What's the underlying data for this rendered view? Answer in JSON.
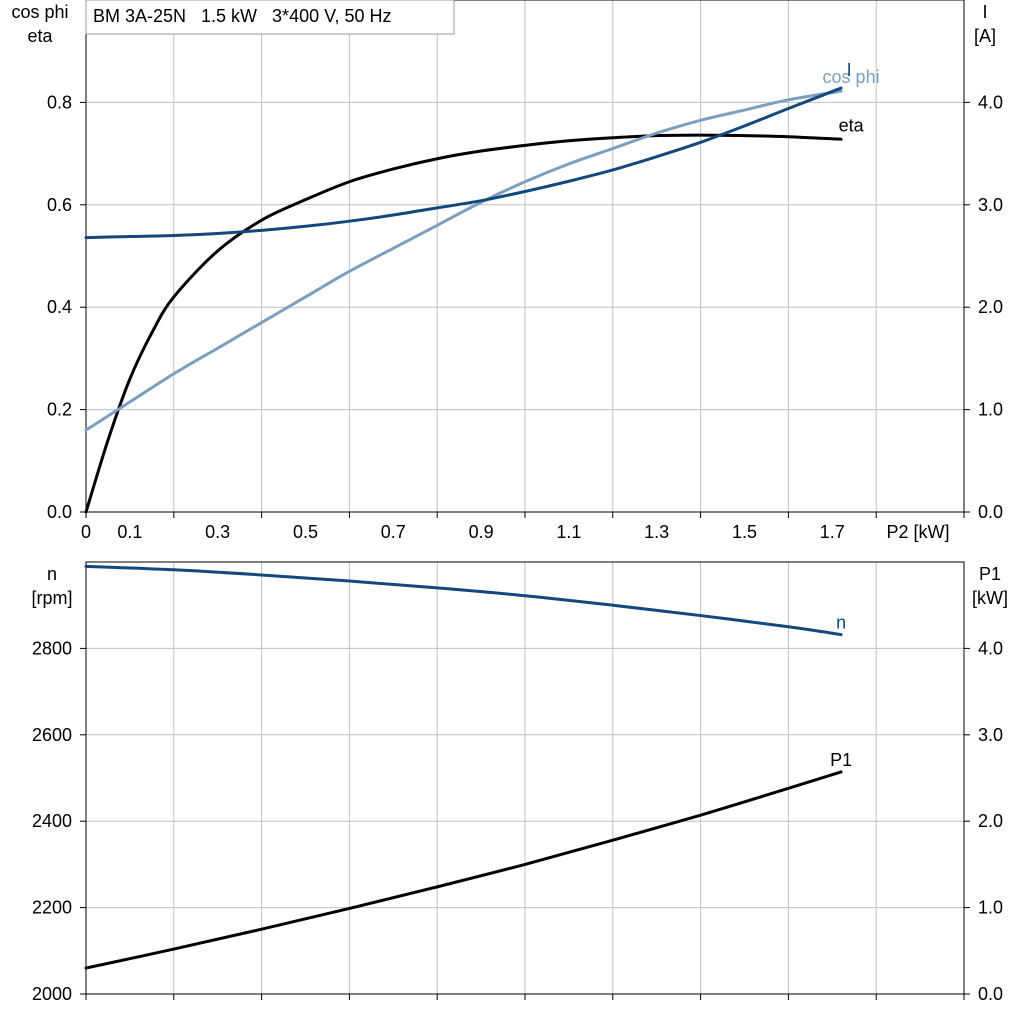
{
  "chart_data": [
    {
      "type": "line",
      "title": "BM 3A-25N   1.5 kW   3*400 V, 50 Hz",
      "xlabel": "P2 [kW]",
      "xlim": [
        0,
        2.0
      ],
      "x_ticks": [
        "0",
        "0.1",
        "0.3",
        "0.5",
        "0.7",
        "0.9",
        "1.1",
        "1.3",
        "1.5",
        "1.7"
      ],
      "x_tick_values": [
        0,
        0.1,
        0.3,
        0.5,
        0.7,
        0.9,
        1.1,
        1.3,
        1.5,
        1.7
      ],
      "grid_x_values": [
        0,
        0.2,
        0.4,
        0.6,
        0.8,
        1.0,
        1.2,
        1.4,
        1.6,
        1.8,
        2.0
      ],
      "ylabel_left": [
        "cos phi",
        "eta"
      ],
      "ylim_left": [
        0,
        1.0
      ],
      "y_ticks_left": [
        "0.0",
        "0.2",
        "0.4",
        "0.6",
        "0.8"
      ],
      "y_tick_values_left": [
        0,
        0.2,
        0.4,
        0.6,
        0.8
      ],
      "ylabel_right": [
        "I",
        "[A]"
      ],
      "ylim_right": [
        0,
        5.0
      ],
      "y_ticks_right": [
        "0.0",
        "1.0",
        "2.0",
        "3.0",
        "4.0"
      ],
      "y_tick_values_right": [
        0,
        1.0,
        2.0,
        3.0,
        4.0
      ],
      "grid": true,
      "series": [
        {
          "name": "eta",
          "axis": "left",
          "color": "#000000",
          "x": [
            0,
            0.05,
            0.1,
            0.15,
            0.2,
            0.3,
            0.4,
            0.5,
            0.6,
            0.7,
            0.8,
            0.9,
            1.0,
            1.1,
            1.2,
            1.3,
            1.4,
            1.5,
            1.6,
            1.72
          ],
          "y": [
            0.0,
            0.14,
            0.26,
            0.35,
            0.42,
            0.51,
            0.57,
            0.61,
            0.645,
            0.67,
            0.69,
            0.705,
            0.716,
            0.725,
            0.731,
            0.735,
            0.736,
            0.735,
            0.733,
            0.728
          ]
        },
        {
          "name": "cos phi",
          "axis": "left",
          "color": "#7c9fc0",
          "x": [
            0,
            0.1,
            0.2,
            0.3,
            0.4,
            0.5,
            0.6,
            0.7,
            0.8,
            0.9,
            1.0,
            1.1,
            1.2,
            1.3,
            1.4,
            1.5,
            1.6,
            1.72
          ],
          "y": [
            0.16,
            0.215,
            0.27,
            0.32,
            0.37,
            0.42,
            0.47,
            0.515,
            0.56,
            0.605,
            0.645,
            0.68,
            0.71,
            0.74,
            0.765,
            0.785,
            0.805,
            0.822
          ]
        },
        {
          "name": "I",
          "axis": "right",
          "color": "#13487e",
          "x": [
            0,
            0.1,
            0.2,
            0.3,
            0.4,
            0.5,
            0.6,
            0.7,
            0.8,
            0.9,
            1.0,
            1.1,
            1.2,
            1.3,
            1.4,
            1.5,
            1.6,
            1.72
          ],
          "y": [
            2.68,
            2.69,
            2.7,
            2.72,
            2.75,
            2.79,
            2.84,
            2.9,
            2.97,
            3.04,
            3.13,
            3.23,
            3.34,
            3.47,
            3.61,
            3.77,
            3.94,
            4.14
          ]
        }
      ],
      "annotations": [
        {
          "text": "cos phi",
          "series": "cos phi"
        },
        {
          "text": "I",
          "series": "I"
        },
        {
          "text": "eta",
          "series": "eta"
        }
      ]
    },
    {
      "type": "line",
      "xlim": [
        0,
        2.0
      ],
      "grid_x_values": [
        0,
        0.2,
        0.4,
        0.6,
        0.8,
        1.0,
        1.2,
        1.4,
        1.6,
        1.8,
        2.0
      ],
      "ylabel_left": [
        "n",
        "[rpm]"
      ],
      "ylim_left": [
        2000,
        3000
      ],
      "y_ticks_left": [
        "2000",
        "2200",
        "2400",
        "2600",
        "2800"
      ],
      "y_tick_values_left": [
        2000,
        2200,
        2400,
        2600,
        2800
      ],
      "ylabel_right": [
        "P1",
        "[kW]"
      ],
      "ylim_right": [
        0,
        5.0
      ],
      "y_ticks_right": [
        "0.0",
        "1.0",
        "2.0",
        "3.0",
        "4.0"
      ],
      "y_tick_values_right": [
        0,
        1.0,
        2.0,
        3.0,
        4.0
      ],
      "grid": true,
      "series": [
        {
          "name": "n",
          "axis": "left",
          "color": "#13487e",
          "x": [
            0,
            0.2,
            0.4,
            0.6,
            0.8,
            1.0,
            1.2,
            1.4,
            1.6,
            1.72
          ],
          "y": [
            2990,
            2982,
            2970,
            2956,
            2940,
            2922,
            2900,
            2876,
            2850,
            2832
          ]
        },
        {
          "name": "P1",
          "axis": "right",
          "color": "#000000",
          "x": [
            0,
            0.2,
            0.4,
            0.6,
            0.8,
            1.0,
            1.2,
            1.4,
            1.6,
            1.72
          ],
          "y": [
            0.3,
            0.52,
            0.75,
            0.99,
            1.24,
            1.5,
            1.78,
            2.07,
            2.38,
            2.57
          ]
        }
      ],
      "annotations": [
        {
          "text": "n",
          "series": "n"
        },
        {
          "text": "P1",
          "series": "P1"
        }
      ]
    }
  ]
}
